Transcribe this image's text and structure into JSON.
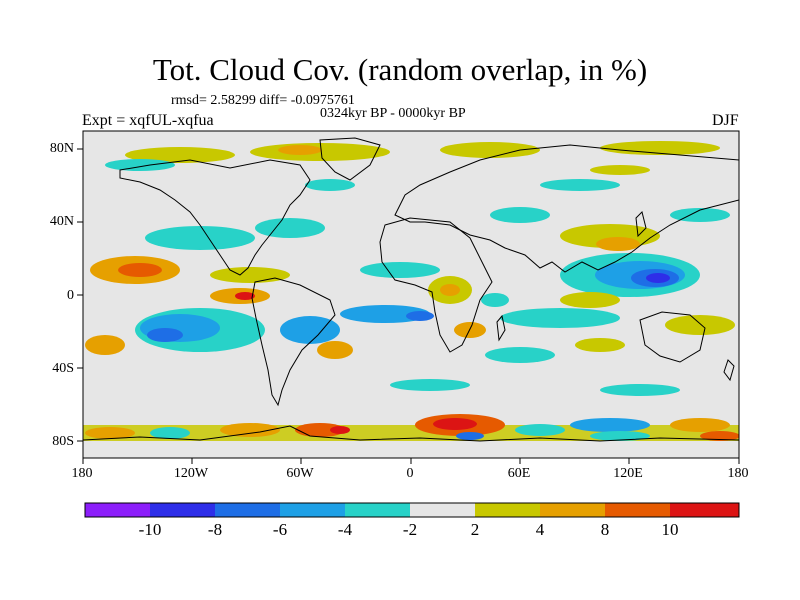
{
  "title": "Tot. Cloud Cov. (random overlap, in %)",
  "stats": "rmsd= 2.58299 diff= -0.0975761",
  "period": "0324kyr BP - 0000kyr BP",
  "experiment": "Expt = xqfUL-xqfua",
  "season": "DJF",
  "lat_labels": [
    "80N",
    "40N",
    "0",
    "40S",
    "80S"
  ],
  "lon_labels": [
    "180",
    "120W",
    "60W",
    "0",
    "60E",
    "120E",
    "180"
  ],
  "colorbar": {
    "labels": [
      "-10",
      "-8",
      "-6",
      "-4",
      "-2",
      "2",
      "4",
      "8",
      "10"
    ],
    "colors": [
      "#8c1efa",
      "#2e2ee8",
      "#1e6ee6",
      "#1ea0e6",
      "#28d2c8",
      "#e6e6e6",
      "#c8c800",
      "#e6a000",
      "#e65a00",
      "#dc1414"
    ]
  },
  "map": {
    "background": "#e6e6e6",
    "projection": "cylindrical-equidistant",
    "extent": {
      "lon": [
        -180,
        180
      ],
      "lat": [
        -90,
        90
      ]
    }
  }
}
